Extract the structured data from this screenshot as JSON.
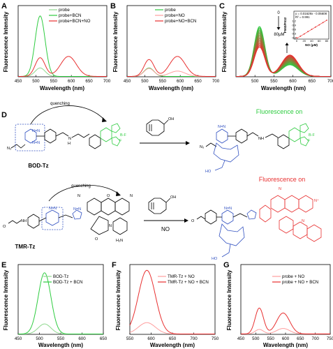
{
  "panels": {
    "A": {
      "letter": "A",
      "xlabel": "Wavelength (nm)",
      "ylabel": "Fluorescence Intensity",
      "xlim": [
        450,
        700
      ],
      "xticks": [
        "450",
        "500",
        "550",
        "600",
        "650",
        "700"
      ],
      "legend": [
        "probe",
        "probe+BCN",
        "probe+BCN+NO"
      ],
      "colors": [
        "#8fd88f",
        "#2ecc40",
        "#e83030"
      ]
    },
    "B": {
      "letter": "B",
      "xlabel": "Wavelength (nm)",
      "ylabel": "Fluorescence Intensity",
      "xlim": [
        450,
        700
      ],
      "xticks": [
        "450",
        "500",
        "550",
        "600",
        "650",
        "700"
      ],
      "legend": [
        "probe",
        "probe+NO",
        "probe+NO+BCN"
      ],
      "colors": [
        "#2ecc40",
        "#ff9e9e",
        "#e83030"
      ]
    },
    "C": {
      "letter": "C",
      "xlabel": "Wavelength (nm)",
      "ylabel": "Fluorescence Intensity",
      "xlim": [
        450,
        700
      ],
      "xticks": [
        "500",
        "550",
        "600",
        "650",
        "700"
      ],
      "annot_top": "0",
      "annot_bottom": "80μM",
      "inset": {
        "equation": "y = 0.01629x - 0.05608",
        "r2": "R² = 0.991",
        "xlabel": "NO (μM)",
        "ylabel": "F592/F512",
        "xticks": [
          "0",
          "20",
          "40",
          "60",
          "80"
        ],
        "yticks": [
          "0.0",
          "0.3",
          "0.6",
          "0.9",
          "1.2"
        ]
      }
    },
    "E": {
      "letter": "E",
      "xlabel": "Wavelength (nm)",
      "ylabel": "Fluorescence Intensity",
      "xlim": [
        450,
        650
      ],
      "xticks": [
        "450",
        "500",
        "550",
        "600",
        "650"
      ],
      "legend": [
        "BOD-Tz",
        "BOD-Tz + BCN"
      ],
      "colors": [
        "#8fd88f",
        "#2ecc40"
      ]
    },
    "F": {
      "letter": "F",
      "xlabel": "Wavelength (nm)",
      "ylabel": "Fluorescence Intensity",
      "xlim": [
        550,
        750
      ],
      "xticks": [
        "550",
        "600",
        "650",
        "700",
        "750"
      ],
      "legend": [
        "TMR-Tz + NO",
        "TMR-Tz + NO + BCN"
      ],
      "colors": [
        "#ff9e9e",
        "#e83030"
      ]
    },
    "G": {
      "letter": "G",
      "xlabel": "Wavelength (nm)",
      "ylabel": "Fluorescence Intensity",
      "xlim": [
        450,
        750
      ],
      "xticks": [
        "450",
        "500",
        "550",
        "600",
        "650",
        "700",
        "750"
      ],
      "legend": [
        "probe + NO",
        "probe + NO + BCN"
      ],
      "colors": [
        "#ff9e9e",
        "#e83030"
      ]
    }
  },
  "scheme": {
    "letter": "D",
    "quenching_top": "quenching",
    "quenching_bottom": "quenching",
    "fluor_green": "Fluorescence on",
    "fluor_red": "Fluorescence on",
    "label_bod": "BOD-Tz",
    "label_tmr": "TMR-Tz",
    "reagent": "NO"
  },
  "chart_data": [
    {
      "panel": "A",
      "type": "line",
      "xlabel": "Wavelength (nm)",
      "ylabel": "Fluorescence Intensity",
      "xlim": [
        450,
        700
      ],
      "ylim": [
        0,
        800
      ],
      "series": [
        {
          "name": "probe",
          "peaks": [
            {
              "center": 512,
              "height": 95,
              "width": 14
            }
          ]
        },
        {
          "name": "probe+BCN",
          "peaks": [
            {
              "center": 512,
              "height": 680,
              "width": 14
            }
          ]
        },
        {
          "name": "probe+BCN+NO",
          "peaks": [
            {
              "center": 512,
              "height": 210,
              "width": 14
            },
            {
              "center": 592,
              "height": 225,
              "width": 22
            }
          ]
        }
      ]
    },
    {
      "panel": "B",
      "type": "line",
      "xlabel": "Wavelength (nm)",
      "ylabel": "Fluorescence Intensity",
      "xlim": [
        450,
        700
      ],
      "ylim": [
        0,
        800
      ],
      "series": [
        {
          "name": "probe",
          "peaks": [
            {
              "center": 512,
              "height": 95,
              "width": 14
            }
          ]
        },
        {
          "name": "probe+NO",
          "peaks": [
            {
              "center": 512,
              "height": 90,
              "width": 14
            },
            {
              "center": 592,
              "height": 60,
              "width": 22
            }
          ]
        },
        {
          "name": "probe+NO+BCN",
          "peaks": [
            {
              "center": 512,
              "height": 190,
              "width": 14
            },
            {
              "center": 592,
              "height": 225,
              "width": 22
            }
          ]
        }
      ]
    },
    {
      "panel": "C",
      "type": "line",
      "xlabel": "Wavelength (nm)",
      "ylabel": "Fluorescence Intensity",
      "xlim": [
        450,
        700
      ],
      "ylim": [
        0,
        800
      ],
      "titration_curves": 18,
      "green_peak": {
        "center": 512,
        "height_start": 560,
        "height_end": 330,
        "width": 14
      },
      "red_peak": {
        "center": 592,
        "height_start": 130,
        "height_end": 240,
        "width": 22
      },
      "inset": {
        "type": "scatter",
        "x": [
          0,
          10,
          20,
          30,
          40,
          50,
          60,
          70,
          80
        ],
        "y": [
          0.0,
          0.11,
          0.27,
          0.44,
          0.6,
          0.76,
          0.92,
          1.08,
          1.25
        ],
        "xlim": [
          0,
          80
        ],
        "ylim": [
          0,
          1.3
        ],
        "fit": {
          "slope": 0.01629,
          "intercept": -0.05608
        }
      }
    },
    {
      "panel": "E",
      "type": "line",
      "xlabel": "Wavelength (nm)",
      "ylabel": "Fluorescence Intensity",
      "xlim": [
        450,
        650
      ],
      "ylim": [
        0,
        900
      ],
      "series": [
        {
          "name": "BOD-Tz",
          "peaks": [
            {
              "center": 512,
              "height": 130,
              "width": 15
            }
          ]
        },
        {
          "name": "BOD-Tz + BCN",
          "peaks": [
            {
              "center": 512,
              "height": 790,
              "width": 15
            }
          ]
        }
      ]
    },
    {
      "panel": "F",
      "type": "line",
      "xlabel": "Wavelength (nm)",
      "ylabel": "Fluorescence Intensity",
      "xlim": [
        550,
        750
      ],
      "ylim": [
        0,
        800
      ],
      "series": [
        {
          "name": "TMR-Tz + NO",
          "peaks": [
            {
              "center": 590,
              "height": 130,
              "width": 20
            }
          ]
        },
        {
          "name": "TMR-Tz + NO + BCN",
          "peaks": [
            {
              "center": 590,
              "height": 730,
              "width": 20
            }
          ]
        }
      ]
    },
    {
      "panel": "G",
      "type": "line",
      "xlabel": "Wavelength (nm)",
      "ylabel": "Fluorescence Intensity",
      "xlim": [
        450,
        750
      ],
      "ylim": [
        0,
        700
      ],
      "series": [
        {
          "name": "probe + NO",
          "peaks": [
            {
              "center": 512,
              "height": 45,
              "width": 14
            },
            {
              "center": 592,
              "height": 55,
              "width": 22
            }
          ]
        },
        {
          "name": "probe + NO + BCN",
          "peaks": [
            {
              "center": 512,
              "height": 260,
              "width": 14
            },
            {
              "center": 592,
              "height": 210,
              "width": 22
            }
          ]
        }
      ]
    }
  ]
}
